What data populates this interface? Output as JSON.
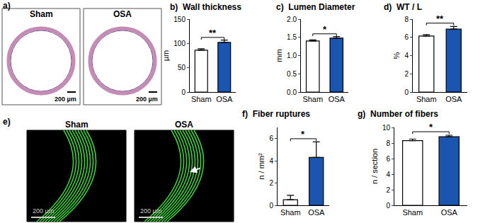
{
  "chart_data": [
    {
      "type": "bar",
      "label": "b)",
      "title": "Wall thickness",
      "ylabel": "µm",
      "categories": [
        "Sham",
        "OSA"
      ],
      "values": [
        86,
        102
      ],
      "errors": [
        3,
        5
      ],
      "colors": [
        "#ffffff",
        "#1a56b0"
      ],
      "ylim": [
        0,
        150
      ],
      "yticks": [
        0,
        50,
        100,
        150
      ],
      "significance": "**"
    },
    {
      "type": "bar",
      "label": "c)",
      "title": "Lumen Diameter",
      "ylabel": "mm",
      "categories": [
        "Sham",
        "OSA"
      ],
      "values": [
        1.4,
        1.48
      ],
      "errors": [
        0.03,
        0.04
      ],
      "colors": [
        "#ffffff",
        "#1a56b0"
      ],
      "ylim": [
        0,
        2
      ],
      "yticks": [
        {
          "value": 0,
          "label": "0.0"
        },
        0.5,
        {
          "value": 1,
          "label": "1.0"
        },
        1.5,
        {
          "value": 2,
          "label": "2.0"
        }
      ],
      "significance": "*"
    },
    {
      "type": "bar",
      "label": "d)",
      "title": "WT / L",
      "ylabel": "%",
      "categories": [
        "Sham",
        "OSA"
      ],
      "values": [
        6.15,
        6.9
      ],
      "errors": [
        0.15,
        0.3
      ],
      "colors": [
        "#ffffff",
        "#1a56b0"
      ],
      "ylim": [
        0,
        8
      ],
      "yticks": [
        0,
        2,
        4,
        6,
        8
      ],
      "significance": "**"
    },
    {
      "type": "bar",
      "label": "f)",
      "title": "Fiber ruptures",
      "ylabel": "n / mm²",
      "categories": [
        "Sham",
        "OSA"
      ],
      "values": [
        0.5,
        4.3
      ],
      "errors": [
        0.4,
        1.4
      ],
      "colors": [
        "#ffffff",
        "#1a56b0"
      ],
      "ylim": [
        0,
        7
      ],
      "yticks": [
        0,
        2,
        4,
        6
      ],
      "significance": "*"
    },
    {
      "type": "bar",
      "label": "g)",
      "title": "Number of fibers",
      "ylabel": "n / section",
      "categories": [
        "Sham",
        "OSA"
      ],
      "values": [
        8.3,
        8.8
      ],
      "errors": [
        0.2,
        0.2
      ],
      "colors": [
        "#ffffff",
        "#1a56b0"
      ],
      "ylim": [
        0,
        10
      ],
      "yticks": [
        0,
        2,
        4,
        6,
        8,
        10
      ],
      "significance": "*"
    }
  ],
  "images": [
    {
      "label": "a)",
      "kind": "histology",
      "panels": [
        {
          "title": "Sham",
          "scale_bar": "200 µm"
        },
        {
          "title": "OSA",
          "scale_bar": "200 µm"
        }
      ]
    },
    {
      "label": "e)",
      "kind": "fluorescence",
      "panels": [
        {
          "title": "Sham",
          "scale_bar": "200 µm"
        },
        {
          "title": "OSA",
          "scale_bar": "200 µm"
        }
      ]
    }
  ]
}
